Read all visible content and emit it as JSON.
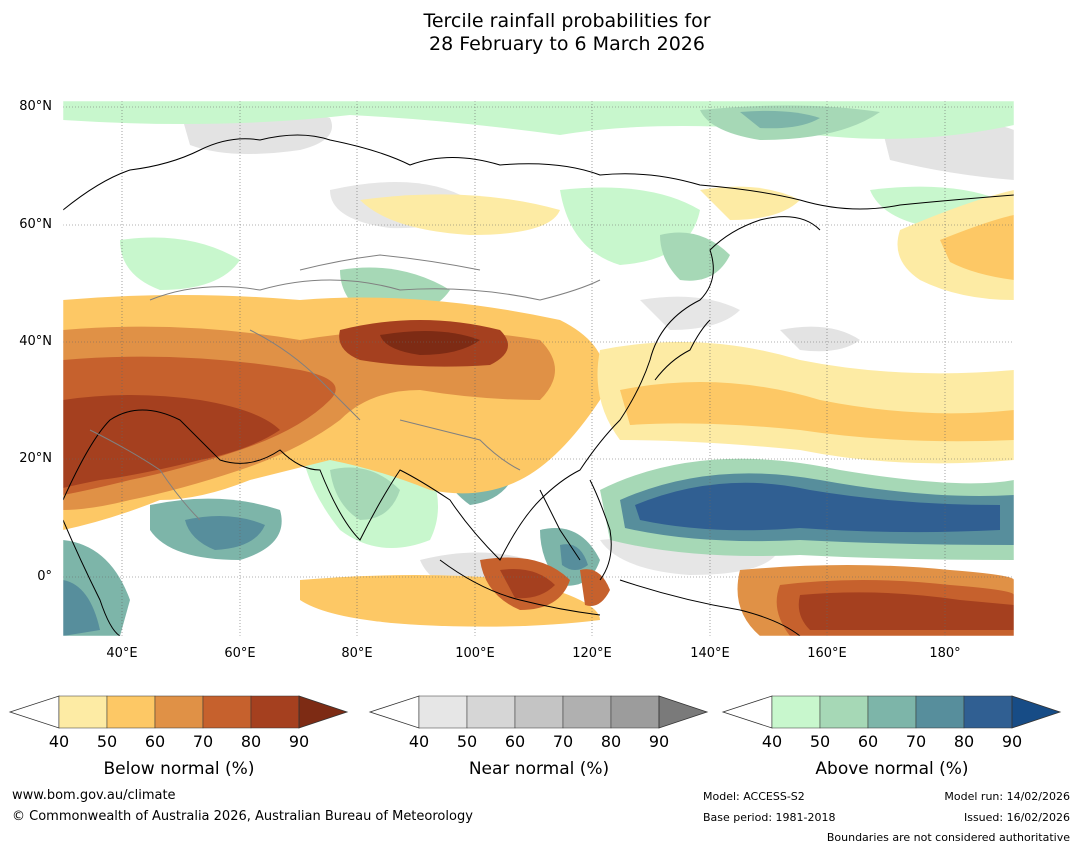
{
  "title_line1": "Tercile rainfall probabilities for",
  "title_line2": "28 February to 6 March 2026",
  "map": {
    "lat_labels": [
      "80°N",
      "60°N",
      "40°N",
      "20°N",
      "0°"
    ],
    "lon_labels": [
      "40°E",
      "60°E",
      "80°E",
      "100°E",
      "120°E",
      "140°E",
      "160°E",
      "180°"
    ],
    "lat_ticks": [
      80,
      60,
      40,
      20,
      0
    ],
    "lon_ticks": [
      40,
      60,
      80,
      100,
      120,
      140,
      160,
      180
    ],
    "extent": {
      "lon_min": 30,
      "lon_max": 192,
      "lat_min": -10,
      "lat_max": 81
    },
    "land_color": "#ffffff",
    "coastline_color": "#000000",
    "border_color": "#808080"
  },
  "colorbars": [
    {
      "name": "below",
      "title": "Below normal (%)",
      "ticks": [
        "40",
        "50",
        "60",
        "70",
        "80",
        "90"
      ],
      "colors": [
        "#fdeba4",
        "#fdc865",
        "#e09146",
        "#c6612d",
        "#a5401f",
        "#7d2b14"
      ]
    },
    {
      "name": "near",
      "title": "Near normal (%)",
      "ticks": [
        "40",
        "50",
        "60",
        "70",
        "80",
        "90"
      ],
      "colors": [
        "#e6e6e6",
        "#d6d6d6",
        "#c4c4c4",
        "#b0b0b0",
        "#9c9c9c",
        "#7a7a7a"
      ]
    },
    {
      "name": "above",
      "title": "Above normal (%)",
      "ticks": [
        "40",
        "50",
        "60",
        "70",
        "80",
        "90"
      ],
      "colors": [
        "#c8f7cd",
        "#a6d8b6",
        "#7db5a9",
        "#578e9c",
        "#305f92",
        "#174c86"
      ]
    }
  ],
  "footer": {
    "website": "www.bom.gov.au/climate",
    "copyright": "© Commonwealth of Australia 2026, Australian Bureau of Meteorology",
    "model": "Model: ACCESS-S2",
    "base_period": "Base period: 1981-2018",
    "model_run": "Model run: 14/02/2026",
    "issued": "Issued: 16/02/2026",
    "boundaries": "Boundaries are not considered authoritative"
  }
}
